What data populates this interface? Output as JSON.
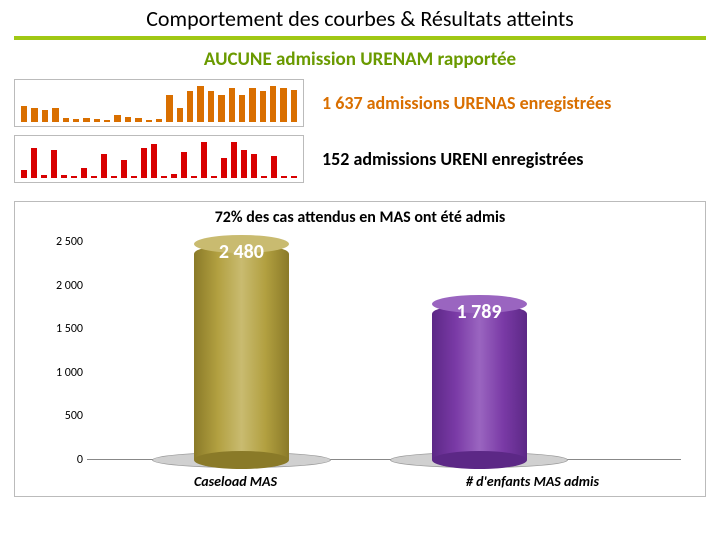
{
  "header": {
    "title": "Comportement des courbes & Résultats atteints",
    "underline_color": "#a0c814",
    "title_fontsize": 22,
    "title_color": "#000000"
  },
  "subtitle": {
    "text": "AUCUNE admission URENAM rapportée",
    "color": "#6a9a00",
    "fontsize": 19
  },
  "sparklines": [
    {
      "label": "1 637 admissions URENAS enregistrées",
      "label_color": "#d96f00",
      "bar_color": "#d96f00",
      "values": [
        18,
        16,
        14,
        16,
        5,
        3,
        4,
        3,
        2,
        8,
        6,
        4,
        2,
        3,
        30,
        16,
        35,
        40,
        35,
        30,
        38,
        30,
        38,
        35,
        40,
        38,
        36
      ],
      "ymax": 45
    },
    {
      "label": "152 admissions URENI enregistrées",
      "label_color": "#000000",
      "bar_color": "#d80000",
      "values": [
        8,
        30,
        3,
        28,
        3,
        2,
        10,
        2,
        24,
        2,
        18,
        2,
        30,
        34,
        2,
        4,
        26,
        2,
        36,
        2,
        20,
        36,
        28,
        24,
        2,
        22,
        2,
        2
      ],
      "ymax": 40
    }
  ],
  "mas_chart": {
    "caption": "72% des cas attendus en MAS ont été admis",
    "type": "bar",
    "background_color": "#ffffff",
    "ylim": [
      0,
      2500
    ],
    "ytick_step": 500,
    "ytick_labels": [
      "0",
      "500",
      "1 000",
      "1 500",
      "2 000",
      "2 500"
    ],
    "categories": [
      "Caseload MAS",
      "# d'enfants MAS admis"
    ],
    "values": [
      2480,
      1789
    ],
    "value_labels": [
      "2 480",
      "1 789"
    ],
    "bar_colors": [
      "#b2a040",
      "#7a3aa6"
    ],
    "bar_top_colors": [
      "#c9bb70",
      "#9a65c0"
    ],
    "bar_bottom_colors": [
      "#8a7a28",
      "#5c2886"
    ],
    "bar_positions_pct": [
      18,
      58
    ],
    "bar_width_pct": 16,
    "base_ellipse_width_pct": 30,
    "base_ellipse_left_pct": [
      11,
      51
    ],
    "value_label_color": "#ffffff",
    "value_fontsize": 20,
    "xlabel_fontsize": 14,
    "ylabel_fontsize": 12,
    "grid": false
  }
}
